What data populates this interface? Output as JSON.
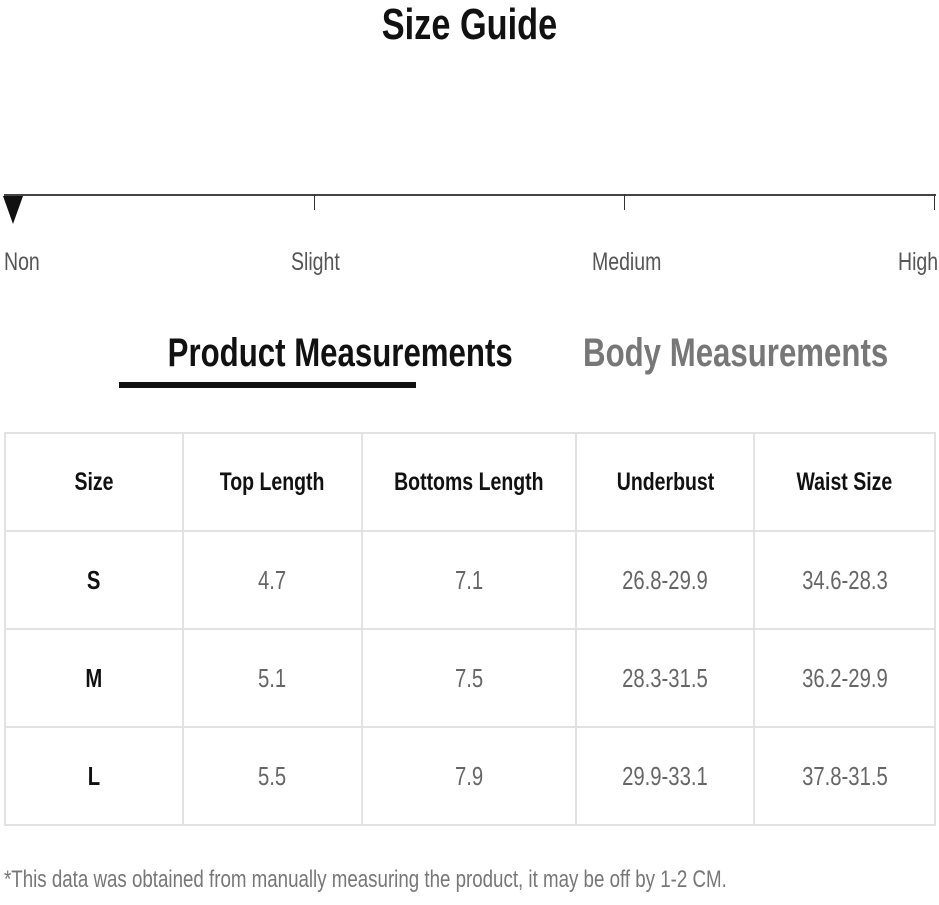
{
  "title": "Size Guide",
  "stretch_scale": {
    "labels": [
      "Non",
      "Slight",
      "Medium",
      "High"
    ],
    "selected": "Non"
  },
  "tabs": [
    {
      "label": "Product Measurements",
      "active": true
    },
    {
      "label": "Body Measurements",
      "active": false
    }
  ],
  "table": {
    "headers": [
      "Size",
      "Top Length",
      "Bottoms Length",
      "Underbust",
      "Waist Size"
    ],
    "rows": [
      [
        "S",
        "4.7",
        "7.1",
        "26.8-29.9",
        "34.6-28.3"
      ],
      [
        "M",
        "5.1",
        "7.5",
        "28.3-31.5",
        "36.2-29.9"
      ],
      [
        "L",
        "5.5",
        "7.9",
        "29.9-33.1",
        "37.8-31.5"
      ]
    ]
  },
  "note": "*This data was obtained from manually measuring the product, it may be off by 1-2 CM."
}
